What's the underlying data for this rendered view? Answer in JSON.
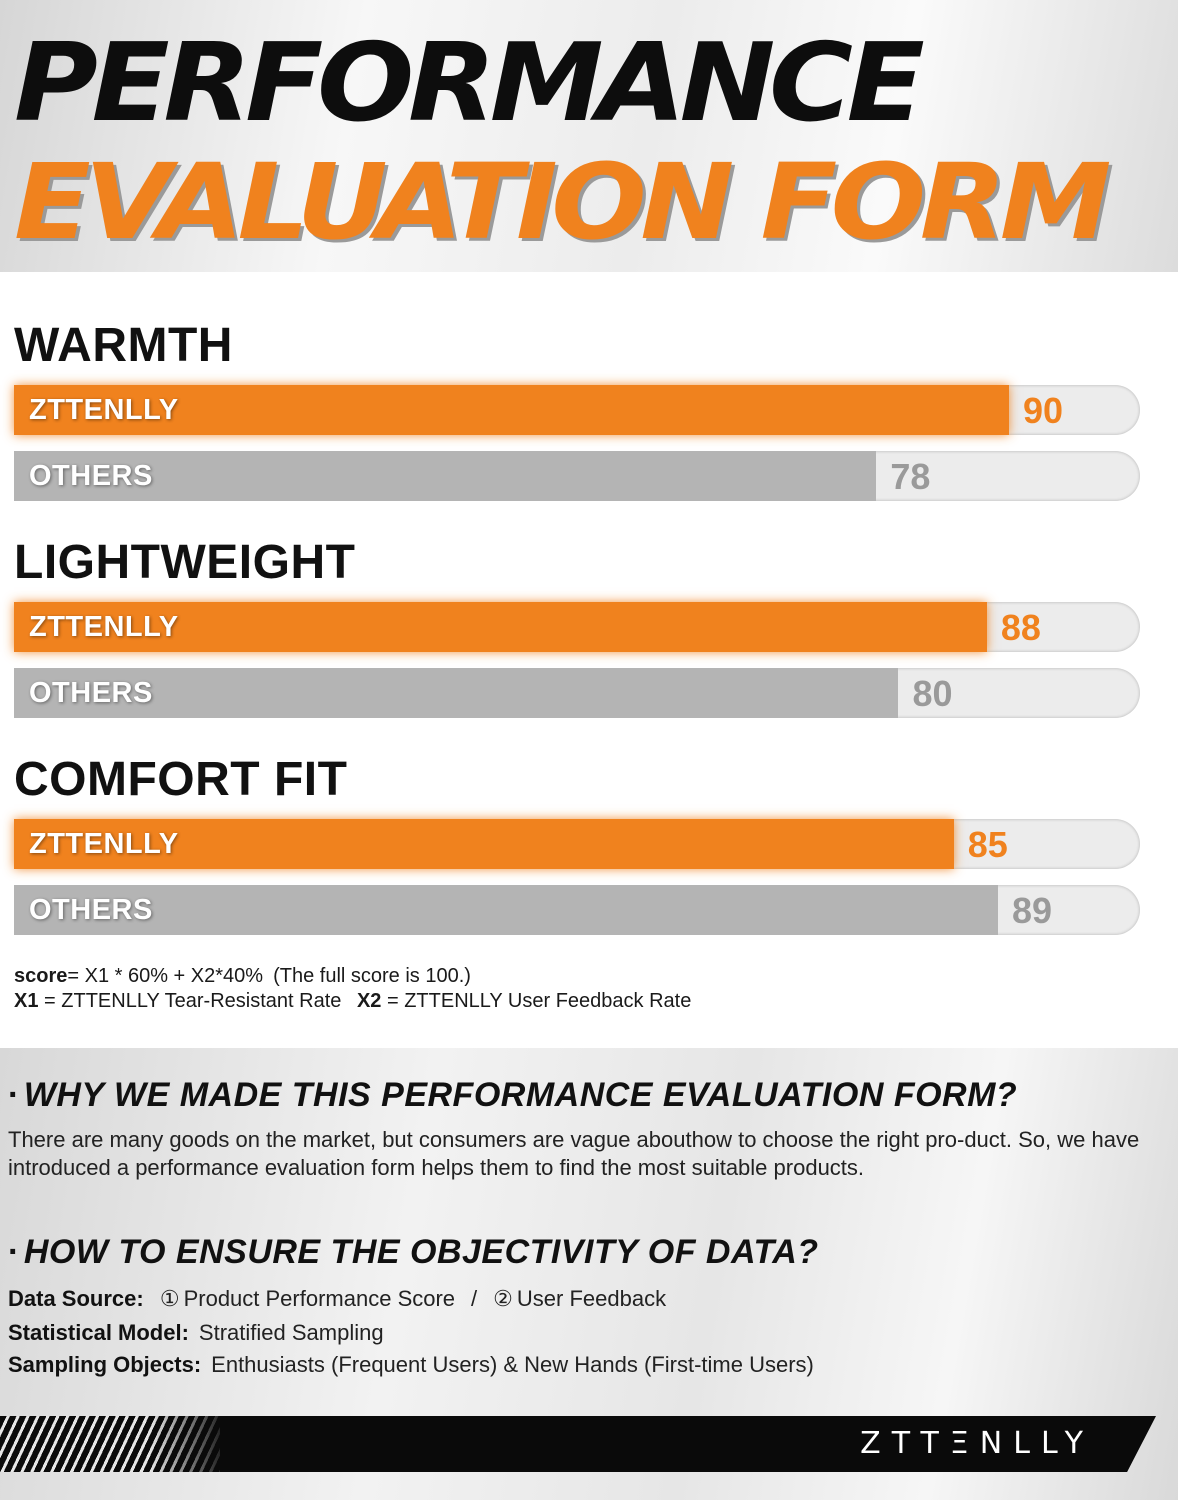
{
  "header": {
    "title_line1": "PERFORMANCE",
    "title_line2": "EVALUATION FORM"
  },
  "chart_data": {
    "type": "bar",
    "orientation": "horizontal",
    "max": 100,
    "colors": {
      "ZTTENLLY": "#f0821e",
      "OTHERS": "#b4b4b4"
    },
    "categories": [
      "WARMTH",
      "LIGHTWEIGHT",
      "COMFORT FIT"
    ],
    "series": [
      {
        "name": "ZTTENLLY",
        "values": [
          90,
          88,
          85
        ]
      },
      {
        "name": "OTHERS",
        "values": [
          78,
          80,
          89
        ]
      }
    ]
  },
  "formula": {
    "score_label": "score",
    "score_expr": "= X1 * 60% + X2*40%",
    "note": "(The full score is 100.)",
    "x1_label": "X1",
    "x1_def": "= ZTTENLLY Tear-Resistant Rate",
    "x2_label": "X2",
    "x2_def": "= ZTTENLLY User Feedback Rate"
  },
  "info": {
    "bullet": "·",
    "why_heading": "WHY WE MADE THIS PERFORMANCE EVALUATION FORM?",
    "why_text": "There are many goods on the market, but consumers are vague abouthow to choose the right pro-duct. So, we have introduced a performance evaluation form helps them to find the most suitable products.",
    "how_heading": "HOW TO ENSURE THE OBJECTIVITY OF DATA?",
    "data_source_label": "Data Source:",
    "data_source_1_num": "①",
    "data_source_1": "Product Performance Score",
    "data_source_sep": "/",
    "data_source_2_num": "②",
    "data_source_2": "User Feedback",
    "model_label": "Statistical Model:",
    "model_value": "Stratified Sampling",
    "objects_label": "Sampling Objects:",
    "objects_value": "Enthusiasts (Frequent Users) & New Hands (First-time Users)"
  },
  "footer": {
    "brand": "ZTTΞNLLY"
  }
}
